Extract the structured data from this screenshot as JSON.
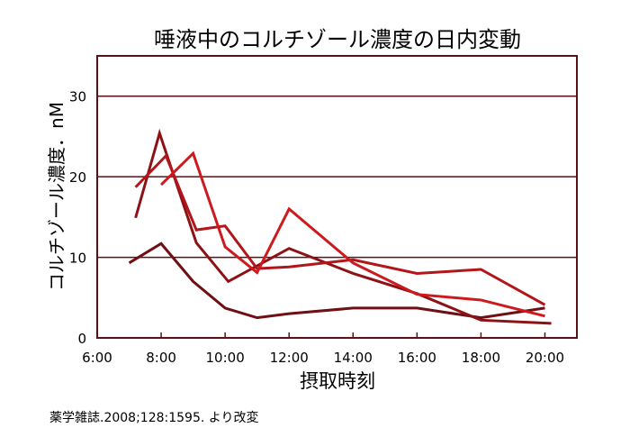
{
  "chart_data": {
    "type": "line",
    "title": "唾液中のコルチゾール濃度の日内変動",
    "xlabel": "摂取時刻",
    "ylabel": "コルチゾール濃度．nM",
    "xlim": [
      6,
      21
    ],
    "ylim": [
      0,
      35
    ],
    "xticks": [
      6,
      8,
      10,
      12,
      14,
      16,
      18,
      20
    ],
    "xtick_labels": [
      "6:00",
      "8:00",
      "10:00",
      "12:00",
      "14:00",
      "16:00",
      "18:00",
      "20:00"
    ],
    "yticks": [
      0,
      10,
      20,
      30
    ],
    "ytick_labels": [
      "0",
      "10",
      "20",
      "30"
    ],
    "grid": "horizontal",
    "source": "薬学雑誌.2008;128:1595. より改変",
    "series": [
      {
        "color": "#6e1014",
        "points": [
          [
            7,
            9.3
          ],
          [
            8,
            11.7
          ],
          [
            9,
            7
          ],
          [
            10,
            3.7
          ],
          [
            11,
            2.5
          ],
          [
            12,
            3
          ],
          [
            14,
            3.7
          ],
          [
            16,
            3.7
          ],
          [
            18,
            2.5
          ],
          [
            20,
            3.7
          ]
        ]
      },
      {
        "color": "#8c1216",
        "points": [
          [
            7.2,
            14.9
          ],
          [
            7.95,
            25.4
          ],
          [
            9.1,
            11.8
          ],
          [
            10.1,
            7
          ],
          [
            12,
            11.1
          ],
          [
            14,
            8
          ],
          [
            16,
            5.5
          ],
          [
            18,
            2.2
          ],
          [
            20.2,
            1.8
          ]
        ]
      },
      {
        "color": "#b3161a",
        "points": [
          [
            7.2,
            18.7
          ],
          [
            8.15,
            22.6
          ],
          [
            9.1,
            13.4
          ],
          [
            10,
            13.9
          ],
          [
            11,
            8.6
          ],
          [
            12,
            8.8
          ],
          [
            14,
            9.7
          ],
          [
            16,
            8
          ],
          [
            18,
            8.5
          ],
          [
            20,
            4.1
          ]
        ]
      },
      {
        "color": "#cc1a1e",
        "points": [
          [
            8,
            19
          ],
          [
            9,
            22.9
          ],
          [
            10,
            11.3
          ],
          [
            11,
            8.1
          ],
          [
            12,
            16
          ],
          [
            14,
            9.3
          ],
          [
            16,
            5.4
          ],
          [
            18,
            4.7
          ],
          [
            20,
            2.7
          ]
        ]
      }
    ]
  }
}
